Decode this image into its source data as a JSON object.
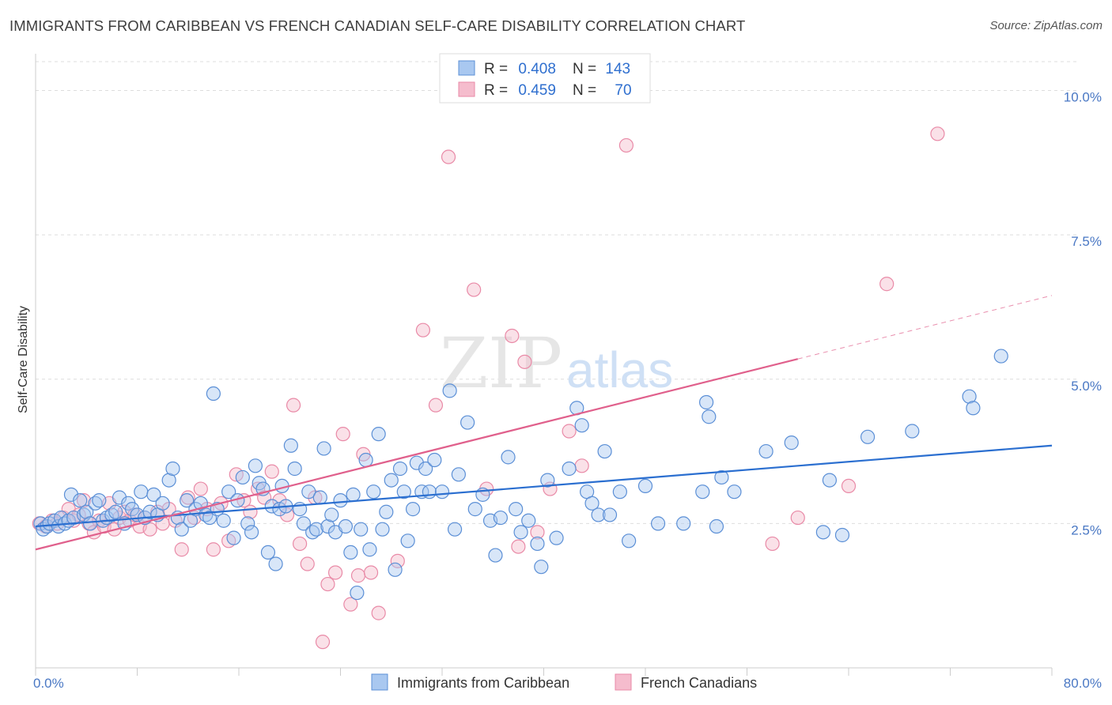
{
  "title": "IMMIGRANTS FROM CARIBBEAN VS FRENCH CANADIAN SELF-CARE DISABILITY CORRELATION CHART",
  "source": "Source: ZipAtlas.com",
  "watermark": {
    "part1": "ZIP",
    "part2": "atlas"
  },
  "colors": {
    "blue_fill": "#a9c8f0",
    "blue_stroke": "#5b8fd6",
    "blue_line": "#2b6fd0",
    "pink_fill": "#f5bccd",
    "pink_stroke": "#e98aa7",
    "pink_line": "#e0608c",
    "axis_text": "#4a78c4",
    "grid": "#dddddd"
  },
  "legend_top": {
    "row1": {
      "r_label": "R = ",
      "r_value": "0.408",
      "n_label": "N = ",
      "n_value": "143"
    },
    "row2": {
      "r_label": "R = ",
      "r_value": "0.459",
      "n_label": "N = ",
      "n_value": "70"
    }
  },
  "chart_data": {
    "type": "scatter",
    "ylabel": "Self-Care Disability",
    "xlabel": "",
    "xlim": [
      0,
      80
    ],
    "ylim": [
      0,
      10.5
    ],
    "x_tick_labels": [
      "0.0%",
      "80.0%"
    ],
    "y_ticks": [
      2.5,
      5.0,
      7.5,
      10.0
    ],
    "y_tick_labels": [
      "2.5%",
      "5.0%",
      "7.5%",
      "10.0%"
    ],
    "grid": true,
    "legend_position": "bottom",
    "series": [
      {
        "name": "Immigrants from Caribbean",
        "color": "#5b8fd6",
        "trend": {
          "x0": 0,
          "y0": 2.45,
          "x1": 80,
          "y1": 3.85
        },
        "points": [
          [
            0.4,
            2.5
          ],
          [
            0.6,
            2.4
          ],
          [
            0.9,
            2.45
          ],
          [
            1.1,
            2.5
          ],
          [
            1.5,
            2.55
          ],
          [
            1.8,
            2.45
          ],
          [
            2.0,
            2.6
          ],
          [
            2.3,
            2.5
          ],
          [
            2.6,
            2.55
          ],
          [
            2.8,
            3.0
          ],
          [
            3.0,
            2.6
          ],
          [
            3.5,
            2.9
          ],
          [
            3.8,
            2.65
          ],
          [
            4.0,
            2.7
          ],
          [
            4.3,
            2.5
          ],
          [
            4.7,
            2.85
          ],
          [
            5.0,
            2.9
          ],
          [
            5.3,
            2.55
          ],
          [
            5.6,
            2.6
          ],
          [
            6.0,
            2.65
          ],
          [
            6.3,
            2.7
          ],
          [
            6.6,
            2.95
          ],
          [
            7.0,
            2.5
          ],
          [
            7.3,
            2.85
          ],
          [
            7.6,
            2.75
          ],
          [
            8.0,
            2.65
          ],
          [
            8.3,
            3.05
          ],
          [
            8.6,
            2.6
          ],
          [
            9.0,
            2.7
          ],
          [
            9.3,
            3.0
          ],
          [
            9.6,
            2.65
          ],
          [
            10.0,
            2.85
          ],
          [
            10.5,
            3.25
          ],
          [
            10.8,
            3.45
          ],
          [
            11.2,
            2.6
          ],
          [
            11.5,
            2.4
          ],
          [
            11.9,
            2.9
          ],
          [
            12.2,
            2.55
          ],
          [
            12.6,
            2.75
          ],
          [
            13.0,
            2.85
          ],
          [
            13.4,
            2.65
          ],
          [
            13.7,
            2.6
          ],
          [
            14.0,
            4.75
          ],
          [
            14.3,
            2.75
          ],
          [
            14.8,
            2.55
          ],
          [
            15.2,
            3.05
          ],
          [
            15.6,
            2.25
          ],
          [
            15.9,
            2.9
          ],
          [
            16.3,
            3.3
          ],
          [
            16.7,
            2.5
          ],
          [
            17.0,
            2.35
          ],
          [
            17.3,
            3.5
          ],
          [
            17.6,
            3.2
          ],
          [
            17.9,
            3.1
          ],
          [
            18.3,
            2.0
          ],
          [
            18.6,
            2.8
          ],
          [
            18.9,
            1.8
          ],
          [
            19.2,
            2.75
          ],
          [
            19.4,
            3.15
          ],
          [
            19.7,
            2.8
          ],
          [
            20.1,
            3.85
          ],
          [
            20.4,
            3.45
          ],
          [
            20.8,
            2.75
          ],
          [
            21.1,
            2.5
          ],
          [
            21.5,
            3.05
          ],
          [
            21.8,
            2.35
          ],
          [
            22.1,
            2.4
          ],
          [
            22.4,
            2.95
          ],
          [
            22.7,
            3.8
          ],
          [
            23.0,
            2.45
          ],
          [
            23.3,
            2.65
          ],
          [
            23.6,
            2.35
          ],
          [
            24.0,
            2.9
          ],
          [
            24.4,
            2.45
          ],
          [
            24.8,
            2.0
          ],
          [
            25.0,
            3.0
          ],
          [
            25.3,
            1.3
          ],
          [
            25.6,
            2.4
          ],
          [
            26.0,
            3.6
          ],
          [
            26.3,
            2.05
          ],
          [
            26.6,
            3.05
          ],
          [
            27.0,
            4.05
          ],
          [
            27.3,
            2.4
          ],
          [
            27.6,
            2.7
          ],
          [
            28.0,
            3.25
          ],
          [
            28.3,
            1.7
          ],
          [
            28.7,
            3.45
          ],
          [
            29.0,
            3.05
          ],
          [
            29.3,
            2.2
          ],
          [
            29.7,
            2.75
          ],
          [
            30.0,
            3.55
          ],
          [
            30.4,
            3.05
          ],
          [
            30.7,
            3.45
          ],
          [
            31.0,
            3.05
          ],
          [
            31.4,
            3.6
          ],
          [
            32.0,
            3.05
          ],
          [
            32.6,
            4.8
          ],
          [
            33.0,
            2.4
          ],
          [
            33.3,
            3.35
          ],
          [
            34.0,
            4.25
          ],
          [
            34.6,
            2.75
          ],
          [
            35.2,
            3.0
          ],
          [
            35.8,
            2.55
          ],
          [
            36.2,
            1.95
          ],
          [
            36.6,
            2.6
          ],
          [
            37.2,
            3.65
          ],
          [
            37.8,
            2.75
          ],
          [
            38.2,
            2.35
          ],
          [
            38.8,
            2.55
          ],
          [
            39.5,
            2.15
          ],
          [
            39.8,
            1.75
          ],
          [
            40.3,
            3.25
          ],
          [
            41.0,
            2.25
          ],
          [
            42.0,
            3.45
          ],
          [
            42.6,
            4.5
          ],
          [
            43.0,
            4.2
          ],
          [
            43.4,
            3.05
          ],
          [
            43.8,
            2.85
          ],
          [
            44.3,
            2.65
          ],
          [
            44.8,
            3.75
          ],
          [
            45.2,
            2.65
          ],
          [
            46.0,
            3.05
          ],
          [
            46.7,
            2.2
          ],
          [
            48.0,
            3.15
          ],
          [
            49.0,
            2.5
          ],
          [
            51.0,
            2.5
          ],
          [
            52.5,
            3.05
          ],
          [
            52.8,
            4.6
          ],
          [
            53.0,
            4.35
          ],
          [
            53.6,
            2.45
          ],
          [
            54.0,
            3.3
          ],
          [
            55.0,
            3.05
          ],
          [
            57.5,
            3.75
          ],
          [
            59.5,
            3.9
          ],
          [
            62.0,
            2.35
          ],
          [
            62.5,
            3.25
          ],
          [
            63.5,
            2.3
          ],
          [
            65.5,
            4.0
          ],
          [
            69.0,
            4.1
          ],
          [
            73.5,
            4.7
          ],
          [
            73.8,
            4.5
          ],
          [
            76.0,
            5.4
          ]
        ]
      },
      {
        "name": "French Canadians",
        "color": "#e98aa7",
        "trend": {
          "x0": 0,
          "y0": 2.05,
          "x1": 60,
          "y1": 5.35,
          "dash_to_x": 80,
          "dash_to_y": 6.45
        },
        "points": [
          [
            0.3,
            2.5
          ],
          [
            0.8,
            2.45
          ],
          [
            1.3,
            2.55
          ],
          [
            1.7,
            2.5
          ],
          [
            2.2,
            2.6
          ],
          [
            2.6,
            2.75
          ],
          [
            3.0,
            2.55
          ],
          [
            3.4,
            2.65
          ],
          [
            3.8,
            2.9
          ],
          [
            4.2,
            2.5
          ],
          [
            4.6,
            2.35
          ],
          [
            5.0,
            2.55
          ],
          [
            5.4,
            2.45
          ],
          [
            5.8,
            2.85
          ],
          [
            6.2,
            2.4
          ],
          [
            6.6,
            2.6
          ],
          [
            7.0,
            2.7
          ],
          [
            7.4,
            2.55
          ],
          [
            7.8,
            2.65
          ],
          [
            8.2,
            2.45
          ],
          [
            8.6,
            2.6
          ],
          [
            9.0,
            2.4
          ],
          [
            9.6,
            2.7
          ],
          [
            10.0,
            2.5
          ],
          [
            10.5,
            2.75
          ],
          [
            11.0,
            2.55
          ],
          [
            11.5,
            2.05
          ],
          [
            12.0,
            2.95
          ],
          [
            12.5,
            2.6
          ],
          [
            13.0,
            3.1
          ],
          [
            13.5,
            2.75
          ],
          [
            14.0,
            2.05
          ],
          [
            14.6,
            2.85
          ],
          [
            15.2,
            2.2
          ],
          [
            15.8,
            3.35
          ],
          [
            16.4,
            2.9
          ],
          [
            16.9,
            2.7
          ],
          [
            17.5,
            3.1
          ],
          [
            18.0,
            2.95
          ],
          [
            18.6,
            3.4
          ],
          [
            19.2,
            2.9
          ],
          [
            19.8,
            2.65
          ],
          [
            20.3,
            4.55
          ],
          [
            20.8,
            2.15
          ],
          [
            21.4,
            1.8
          ],
          [
            22.0,
            2.95
          ],
          [
            22.6,
            0.45
          ],
          [
            23.0,
            1.45
          ],
          [
            23.6,
            1.65
          ],
          [
            24.2,
            4.05
          ],
          [
            24.8,
            1.1
          ],
          [
            25.4,
            1.6
          ],
          [
            25.8,
            3.7
          ],
          [
            26.4,
            1.65
          ],
          [
            27.0,
            0.95
          ],
          [
            28.5,
            1.85
          ],
          [
            30.5,
            5.85
          ],
          [
            31.5,
            4.55
          ],
          [
            32.5,
            8.85
          ],
          [
            34.5,
            6.55
          ],
          [
            35.5,
            3.1
          ],
          [
            37.5,
            5.75
          ],
          [
            38.0,
            2.1
          ],
          [
            38.5,
            5.3
          ],
          [
            39.5,
            2.35
          ],
          [
            40.5,
            3.1
          ],
          [
            42.0,
            4.1
          ],
          [
            43.0,
            3.5
          ],
          [
            46.5,
            9.05
          ],
          [
            58.0,
            2.15
          ],
          [
            60.0,
            2.6
          ],
          [
            64.0,
            3.15
          ],
          [
            67.0,
            6.65
          ],
          [
            71.0,
            9.25
          ]
        ]
      }
    ]
  },
  "bottom_legend": {
    "item1": "Immigrants from Caribbean",
    "item2": "French Canadians"
  }
}
